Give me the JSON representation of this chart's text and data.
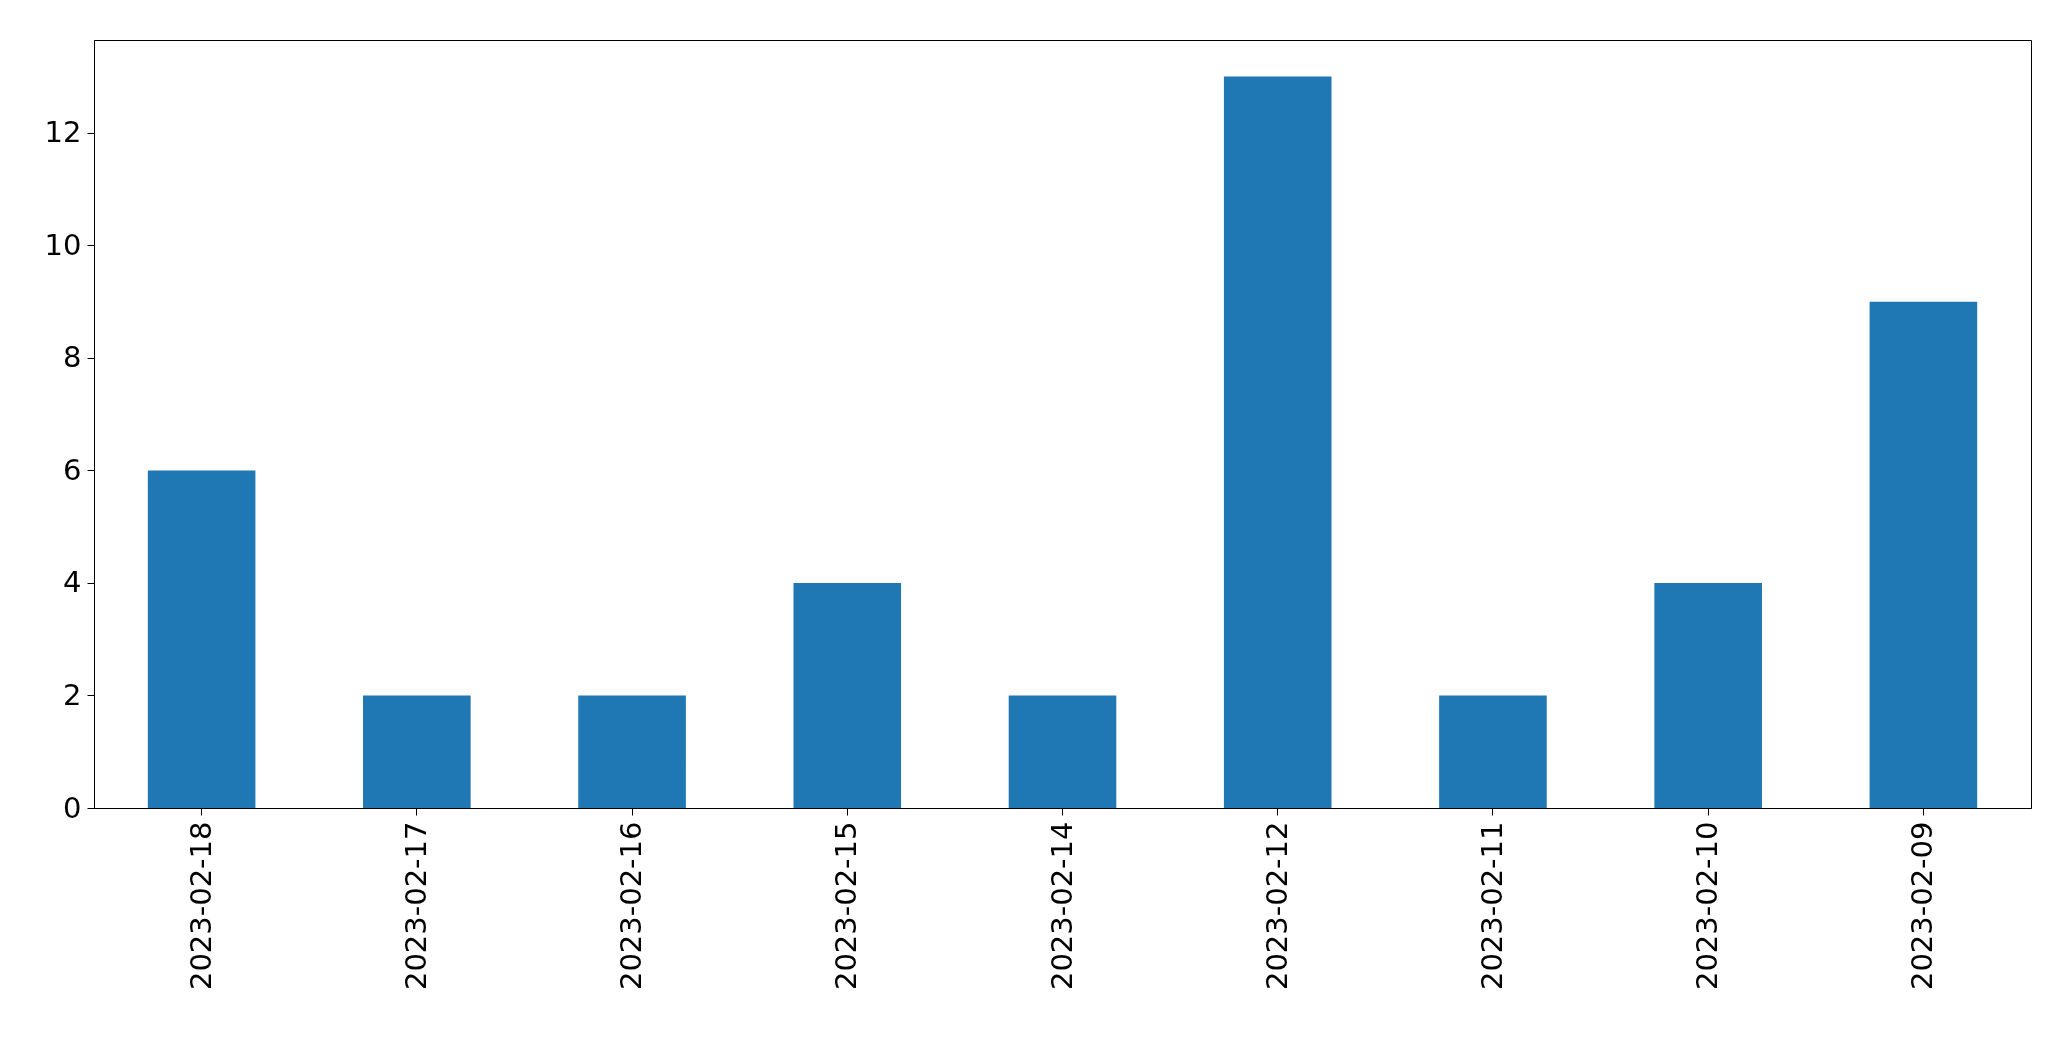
{
  "chart_data": {
    "type": "bar",
    "categories": [
      "2023-02-18",
      "2023-02-17",
      "2023-02-16",
      "2023-02-15",
      "2023-02-14",
      "2023-02-12",
      "2023-02-11",
      "2023-02-10",
      "2023-02-09"
    ],
    "values": [
      6,
      2,
      2,
      4,
      2,
      13,
      2,
      4,
      9
    ],
    "color": "#1f77b4",
    "ylim": [
      0,
      13.65
    ],
    "yticks": [
      0,
      2,
      4,
      6,
      8,
      10,
      12
    ]
  }
}
